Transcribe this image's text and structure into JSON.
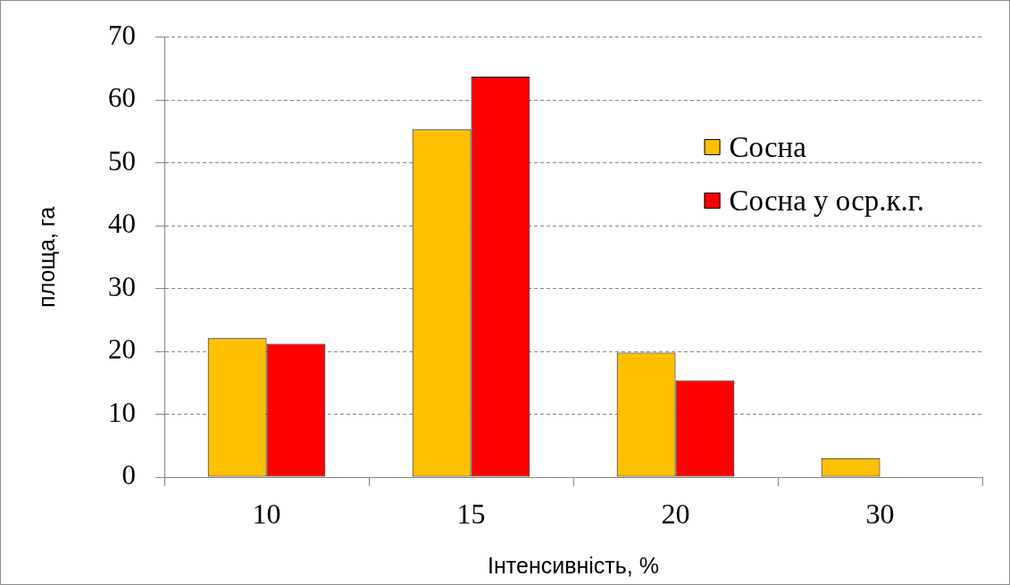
{
  "chart_data": {
    "type": "bar",
    "xlabel": "Інтенсивність, %",
    "ylabel": "площа, га",
    "categories": [
      "10",
      "15",
      "20",
      "30"
    ],
    "series": [
      {
        "name": "Сосна",
        "color": "#ffc000",
        "values": [
          22.1,
          55.3,
          19.8,
          3.0
        ]
      },
      {
        "name": "Сосна у оср.к.г.",
        "color": "#ff0000",
        "values": [
          21.2,
          63.7,
          15.4,
          null
        ]
      }
    ],
    "ylim": [
      0,
      70
    ],
    "yticks": [
      0,
      10,
      20,
      30,
      40,
      50,
      60,
      70
    ],
    "grid": "y",
    "legend": "right"
  }
}
